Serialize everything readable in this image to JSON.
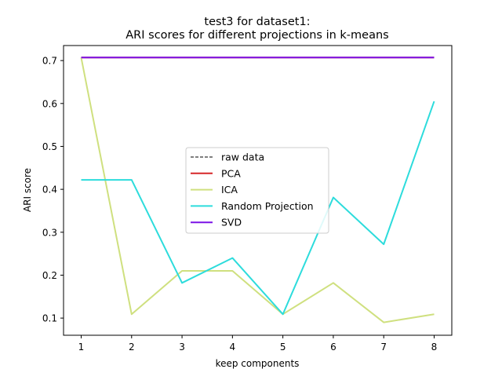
{
  "chart_data": {
    "type": "line",
    "title_line1": "test3 for dataset1:",
    "title_line2": "ARI scores for different projections in k-means",
    "xlabel": "keep components",
    "ylabel": "ARI score",
    "x": [
      1,
      2,
      3,
      4,
      5,
      6,
      7,
      8
    ],
    "xlim": [
      0.65,
      8.35
    ],
    "ylim": [
      0.06,
      0.735
    ],
    "xticks": [
      "1",
      "2",
      "3",
      "4",
      "5",
      "6",
      "7",
      "8"
    ],
    "yticks": [
      "0.1",
      "0.2",
      "0.3",
      "0.4",
      "0.5",
      "0.6",
      "0.7"
    ],
    "ytick_values": [
      0.1,
      0.2,
      0.3,
      0.4,
      0.5,
      0.6,
      0.7
    ],
    "grid": false,
    "legend_position": "center",
    "series": [
      {
        "name": "raw data",
        "color": "#000000",
        "style": "dashed",
        "values": [
          0.707,
          0.707,
          0.707,
          0.707,
          0.707,
          0.707,
          0.707,
          0.707
        ]
      },
      {
        "name": "PCA",
        "color": "#d62728",
        "style": "solid",
        "values": [
          0.707,
          0.707,
          0.707,
          0.707,
          0.707,
          0.707,
          0.707,
          0.707
        ]
      },
      {
        "name": "ICA",
        "color": "#cfe07f",
        "style": "solid",
        "values": [
          0.707,
          0.109,
          0.21,
          0.21,
          0.109,
          0.182,
          0.09,
          0.109
        ]
      },
      {
        "name": "Random Projection",
        "color": "#2ddcdc",
        "style": "solid",
        "values": [
          0.422,
          0.422,
          0.182,
          0.24,
          0.109,
          0.381,
          0.272,
          0.605
        ]
      },
      {
        "name": "SVD",
        "color": "#7b12e6",
        "style": "solid",
        "values": [
          0.707,
          0.707,
          0.707,
          0.707,
          0.707,
          0.707,
          0.707,
          0.707
        ]
      }
    ]
  }
}
